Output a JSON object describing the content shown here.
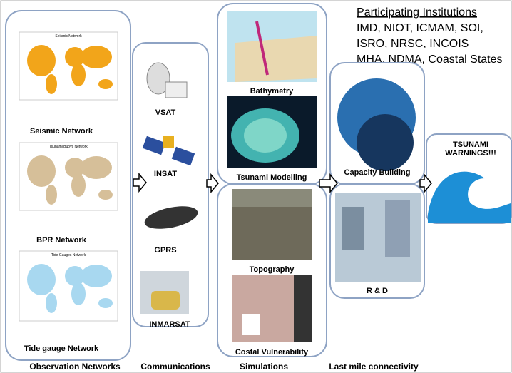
{
  "institutions": {
    "title": "Participating Institutions",
    "lines": [
      "IMD, NIOT, ICMAM, SOI,",
      "ISRO, NRSC, INCOIS",
      "MHA, NDMA, Coastal States"
    ]
  },
  "columns": [
    {
      "caption": "Observation Networks",
      "items": [
        {
          "map_title": "Seismic Network",
          "label": "Seismic Network"
        },
        {
          "map_title": "Tsunami Buoys Network",
          "label": "BPR Network"
        },
        {
          "map_title": "Tide Gauges Network",
          "label": "Tide gauge Network"
        }
      ]
    },
    {
      "caption": "Communications",
      "items": [
        {
          "label": "VSAT"
        },
        {
          "label": "INSAT"
        },
        {
          "label": "GPRS"
        },
        {
          "label": "INMARSAT"
        }
      ]
    },
    {
      "caption": "Simulations",
      "items": [
        {
          "label": "Bathymetry"
        },
        {
          "label": "Tsunami Modelling"
        },
        {
          "label": "Topography"
        },
        {
          "label": "Costal Vulnerability"
        }
      ]
    },
    {
      "caption": "Last mile connectivity",
      "items": [
        {
          "label": "Capacity Building"
        },
        {
          "label": "R & D"
        }
      ]
    }
  ],
  "warning": {
    "text": "TSUNAMI WARNINGS!!!"
  }
}
